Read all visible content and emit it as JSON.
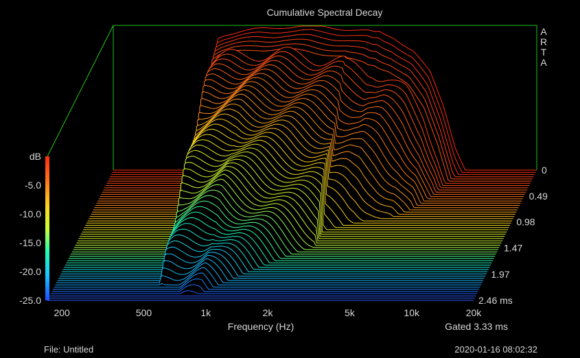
{
  "app": {
    "brand": "ARTA"
  },
  "chart_data": {
    "type": "waterfall",
    "title": "Cumulative Spectral Decay",
    "xlabel": "Frequency (Hz)",
    "zlabel": "dB",
    "x_scale": "log",
    "xlim_hz": [
      170,
      20000
    ],
    "x_ticks": [
      {
        "v": 200,
        "label": "200"
      },
      {
        "v": 500,
        "label": "500"
      },
      {
        "v": 1000,
        "label": "1k"
      },
      {
        "v": 2000,
        "label": "2k"
      },
      {
        "v": 5000,
        "label": "5k"
      },
      {
        "v": 10000,
        "label": "10k"
      },
      {
        "v": 20000,
        "label": "20k"
      }
    ],
    "zlim_db": [
      -25,
      0
    ],
    "z_ticks": [
      {
        "v": 0,
        "label": "dB"
      },
      {
        "v": -5,
        "label": "-5.0"
      },
      {
        "v": -10,
        "label": "-10.0"
      },
      {
        "v": -15,
        "label": "-15.0"
      },
      {
        "v": -20,
        "label": "-20.0"
      },
      {
        "v": -25,
        "label": "-25.0"
      }
    ],
    "time_unit": "ms",
    "tlim_ms": [
      0,
      2.46
    ],
    "t_ticks": [
      {
        "v": 0,
        "label": "0"
      },
      {
        "v": 0.49,
        "label": "0.49"
      },
      {
        "v": 0.98,
        "label": "0.98"
      },
      {
        "v": 1.47,
        "label": "1.47"
      },
      {
        "v": 1.97,
        "label": "1.97"
      },
      {
        "v": 2.46,
        "label": "2.46 ms"
      }
    ],
    "gating": "Gated 3.33 ms",
    "slice_count": 60,
    "response_profile": {
      "freq_hz": [
        170,
        520,
        550,
        600,
        700,
        900,
        1200,
        1600,
        2000,
        2500,
        3000,
        3200,
        3400,
        3600,
        4000,
        5000,
        6000,
        7000,
        8000,
        9000,
        20000
      ],
      "level_db": [
        -25,
        -25,
        -2,
        -1.4,
        -1,
        -0.5,
        -0.1,
        0,
        -0.3,
        -0.6,
        -0.9,
        -1.2,
        -1.1,
        -1.5,
        -2,
        -4.3,
        -8,
        -14,
        -21,
        -25,
        -25
      ]
    },
    "colorscale": [
      "#1a4dff",
      "#19c8ff",
      "#20ffb0",
      "#ccff33",
      "#ffd21f",
      "#ff7a1a",
      "#ff2a10"
    ]
  },
  "footer": {
    "file": "File: Untitled",
    "timestamp": "2020-01-16  08:02:32"
  },
  "colors": {
    "frame": "#22c61e",
    "baseline": "#2e5cff",
    "background": "#000000"
  }
}
